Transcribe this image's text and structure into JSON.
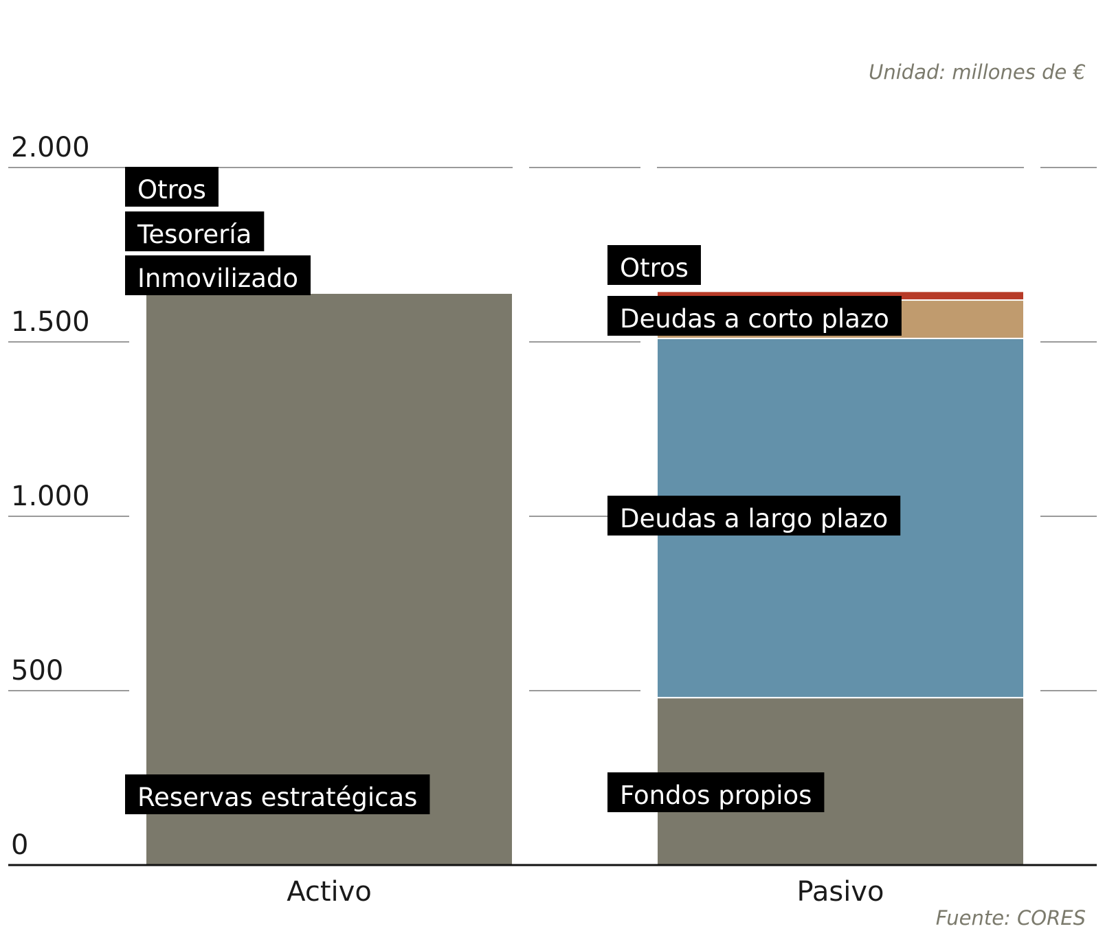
{
  "unit_note": "Unidad: millones de €",
  "source_note": "Fuente: CORES",
  "chart_data": {
    "type": "bar",
    "stacked": true,
    "categories": [
      "Activo",
      "Pasivo"
    ],
    "ylim": [
      0,
      2000
    ],
    "yticks": [
      0,
      500,
      1000,
      1500,
      2000
    ],
    "ytick_labels": [
      "0",
      "500",
      "1.000",
      "1.500",
      "2.000"
    ],
    "grid": true,
    "stacks": [
      {
        "category": "Activo",
        "segments": [
          {
            "name": "Reservas estratégicas",
            "value": 1640,
            "color": "#7b796b"
          },
          {
            "name": "Inmovilizado",
            "value": 2,
            "color": "#c8b08c"
          },
          {
            "name": "Tesorería",
            "value": 2,
            "color": "#5f8fa8"
          },
          {
            "name": "Otros",
            "value": 2,
            "color": "#b73b28"
          }
        ]
      },
      {
        "category": "Pasivo",
        "segments": [
          {
            "name": "Fondos propios",
            "value": 480,
            "color": "#7b796b"
          },
          {
            "name": "Deudas a largo plazo",
            "value": 1030,
            "color": "#6391aa"
          },
          {
            "name": "Deudas a corto plazo",
            "value": 110,
            "color": "#c09b6e"
          },
          {
            "name": "Otros",
            "value": 25,
            "color": "#b73b28"
          }
        ]
      }
    ]
  }
}
